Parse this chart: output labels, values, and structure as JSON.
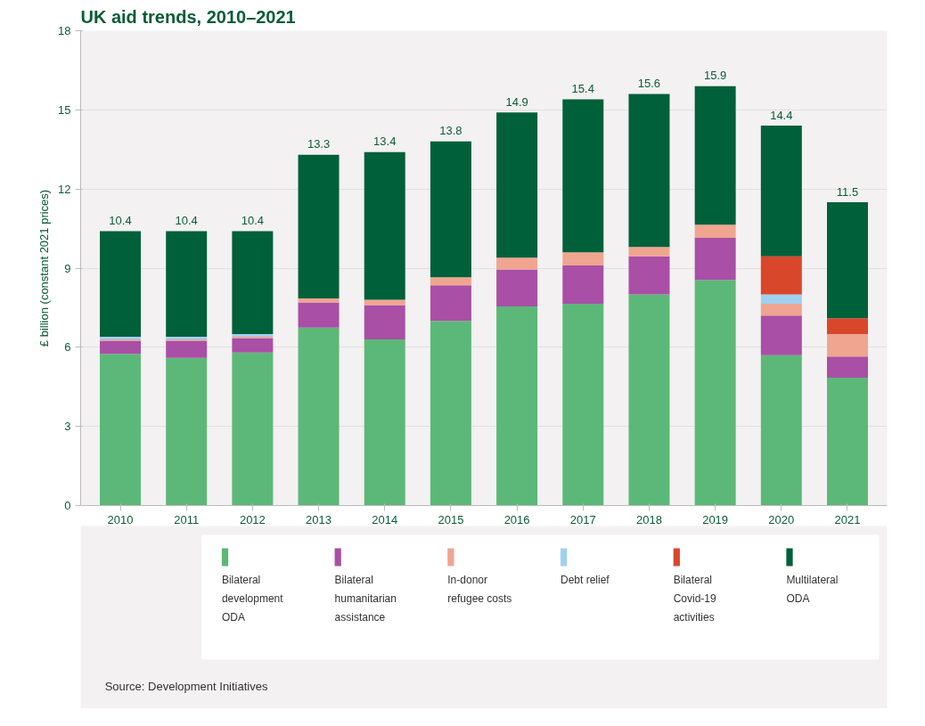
{
  "chart_data": {
    "type": "bar",
    "title": "UK aid trends, 2010–2021",
    "ylabel": "£ billion (constant 2021 prices)",
    "categories": [
      "2010",
      "2011",
      "2012",
      "2013",
      "2014",
      "2015",
      "2016",
      "2017",
      "2018",
      "2019",
      "2020",
      "2021"
    ],
    "stacked": true,
    "series": [
      {
        "name": "Bilateral development ODA",
        "color": "#5cb878",
        "values": [
          5.75,
          5.6,
          5.8,
          6.75,
          6.3,
          7.0,
          7.55,
          7.65,
          8.0,
          8.55,
          5.7,
          4.85
        ]
      },
      {
        "name": "Bilateral humanitarian assistance",
        "color": "#a94fa6",
        "values": [
          0.5,
          0.65,
          0.55,
          0.95,
          1.3,
          1.35,
          1.4,
          1.45,
          1.45,
          1.6,
          1.5,
          0.8
        ]
      },
      {
        "name": "In-donor refugee costs",
        "color": "#f0a590",
        "values": [
          0.05,
          0.05,
          0.05,
          0.15,
          0.2,
          0.3,
          0.45,
          0.5,
          0.35,
          0.5,
          0.45,
          0.85
        ]
      },
      {
        "name": "Debt relief",
        "color": "#9fd0ee",
        "values": [
          0.1,
          0.1,
          0.1,
          0,
          0,
          0,
          0,
          0,
          0,
          0,
          0.35,
          0
        ]
      },
      {
        "name": "Bilateral Covid-19 activities",
        "color": "#d9472b",
        "values": [
          0,
          0,
          0,
          0,
          0,
          0,
          0,
          0,
          0,
          0,
          1.45,
          0.6
        ]
      },
      {
        "name": "Multilateral ODA",
        "color": "#00603a",
        "values": [
          4.0,
          4.0,
          3.9,
          5.45,
          5.6,
          5.15,
          5.5,
          5.8,
          5.8,
          5.25,
          4.95,
          4.4
        ]
      }
    ],
    "totals": [
      "10.4",
      "10.4",
      "10.4",
      "13.3",
      "13.4",
      "13.8",
      "14.9",
      "15.4",
      "15.6",
      "15.9",
      "14.4",
      "11.5"
    ],
    "ylim": [
      0,
      18
    ],
    "yticks": [
      0,
      3,
      6,
      9,
      12,
      15,
      18
    ],
    "grid": "y",
    "legend": "bottom",
    "annotations": [
      "Source: Development Initiatives"
    ]
  }
}
